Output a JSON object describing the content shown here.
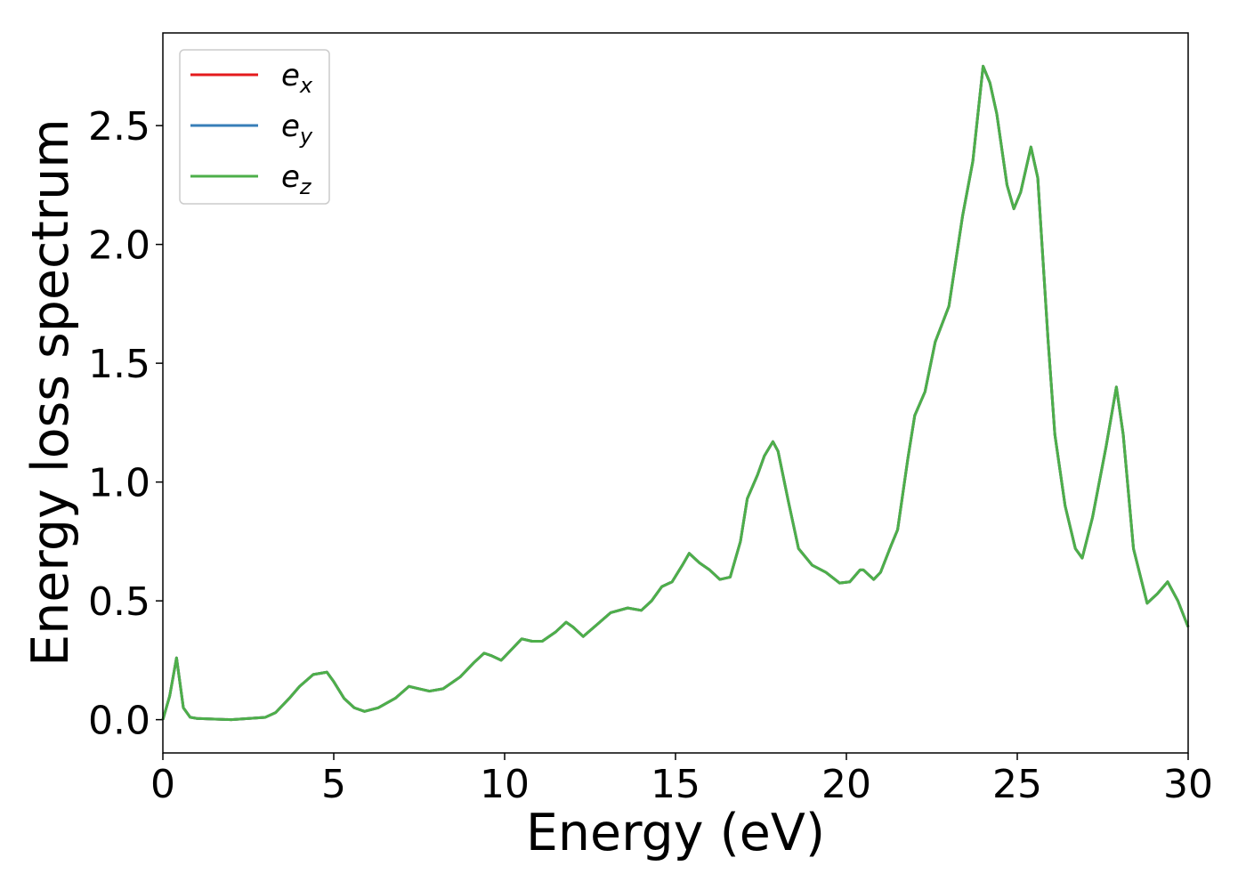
{
  "chart_data": {
    "type": "line",
    "xlabel": "Energy (eV)",
    "ylabel": "Energy loss spectrum",
    "x": [
      0,
      0.2,
      0.4,
      0.6,
      0.8,
      1,
      2,
      3,
      3.3,
      3.7,
      4,
      4.4,
      4.8,
      5,
      5.3,
      5.6,
      5.9,
      6.3,
      6.8,
      7.2,
      7.5,
      7.8,
      8.2,
      8.7,
      9.1,
      9.4,
      9.6,
      9.9,
      10.1,
      10.5,
      10.8,
      11.1,
      11.5,
      11.8,
      12,
      12.3,
      12.7,
      13.1,
      13.6,
      14,
      14.3,
      14.6,
      14.9,
      15.2,
      15.4,
      15.7,
      16,
      16.3,
      16.6,
      16.9,
      17.1,
      17.4,
      17.6,
      17.85,
      18,
      18.3,
      18.6,
      19,
      19.4,
      19.8,
      20.1,
      20.4,
      20.5,
      20.8,
      21,
      21.3,
      21.5,
      21.8,
      22,
      22.3,
      22.6,
      23,
      23.4,
      23.7,
      24,
      24.2,
      24.4,
      24.7,
      24.9,
      25.1,
      25.4,
      25.6,
      25.9,
      26.1,
      26.4,
      26.7,
      26.9,
      27.2,
      27.6,
      27.9,
      28.1,
      28.4,
      28.8,
      29.1,
      29.4,
      29.7,
      30
    ],
    "series": [
      {
        "name": "e_x",
        "color": "#e41a1c",
        "values": [
          0,
          0.1,
          0.26,
          0.05,
          0.01,
          0.005,
          0,
          0.01,
          0.03,
          0.09,
          0.14,
          0.19,
          0.2,
          0.16,
          0.09,
          0.05,
          0.035,
          0.05,
          0.09,
          0.14,
          0.13,
          0.12,
          0.13,
          0.18,
          0.24,
          0.28,
          0.27,
          0.25,
          0.28,
          0.34,
          0.33,
          0.33,
          0.37,
          0.41,
          0.39,
          0.35,
          0.4,
          0.45,
          0.47,
          0.46,
          0.5,
          0.56,
          0.58,
          0.65,
          0.7,
          0.66,
          0.63,
          0.59,
          0.6,
          0.75,
          0.93,
          1.03,
          1.11,
          1.17,
          1.13,
          0.92,
          0.72,
          0.65,
          0.62,
          0.575,
          0.58,
          0.63,
          0.63,
          0.59,
          0.62,
          0.73,
          0.8,
          1.1,
          1.28,
          1.38,
          1.59,
          1.74,
          2.12,
          2.35,
          2.75,
          2.68,
          2.55,
          2.25,
          2.15,
          2.22,
          2.41,
          2.28,
          1.6,
          1.2,
          0.9,
          0.72,
          0.68,
          0.85,
          1.15,
          1.4,
          1.2,
          0.72,
          0.49,
          0.53,
          0.58,
          0.5,
          0.39
        ]
      },
      {
        "name": "e_y",
        "color": "#377eb8",
        "values": [
          0,
          0.1,
          0.26,
          0.05,
          0.01,
          0.005,
          0,
          0.01,
          0.03,
          0.09,
          0.14,
          0.19,
          0.2,
          0.16,
          0.09,
          0.05,
          0.035,
          0.05,
          0.09,
          0.14,
          0.13,
          0.12,
          0.13,
          0.18,
          0.24,
          0.28,
          0.27,
          0.25,
          0.28,
          0.34,
          0.33,
          0.33,
          0.37,
          0.41,
          0.39,
          0.35,
          0.4,
          0.45,
          0.47,
          0.46,
          0.5,
          0.56,
          0.58,
          0.65,
          0.7,
          0.66,
          0.63,
          0.59,
          0.6,
          0.75,
          0.93,
          1.03,
          1.11,
          1.17,
          1.13,
          0.92,
          0.72,
          0.65,
          0.62,
          0.575,
          0.58,
          0.63,
          0.63,
          0.59,
          0.62,
          0.73,
          0.8,
          1.1,
          1.28,
          1.38,
          1.59,
          1.74,
          2.12,
          2.35,
          2.75,
          2.68,
          2.55,
          2.25,
          2.15,
          2.22,
          2.41,
          2.28,
          1.6,
          1.2,
          0.9,
          0.72,
          0.68,
          0.85,
          1.15,
          1.4,
          1.2,
          0.72,
          0.49,
          0.53,
          0.58,
          0.5,
          0.39
        ]
      },
      {
        "name": "e_z",
        "color": "#4daf4a",
        "values": [
          0,
          0.1,
          0.26,
          0.05,
          0.01,
          0.005,
          0,
          0.01,
          0.03,
          0.09,
          0.14,
          0.19,
          0.2,
          0.16,
          0.09,
          0.05,
          0.035,
          0.05,
          0.09,
          0.14,
          0.13,
          0.12,
          0.13,
          0.18,
          0.24,
          0.28,
          0.27,
          0.25,
          0.28,
          0.34,
          0.33,
          0.33,
          0.37,
          0.41,
          0.39,
          0.35,
          0.4,
          0.45,
          0.47,
          0.46,
          0.5,
          0.56,
          0.58,
          0.65,
          0.7,
          0.66,
          0.63,
          0.59,
          0.6,
          0.75,
          0.93,
          1.03,
          1.11,
          1.17,
          1.13,
          0.92,
          0.72,
          0.65,
          0.62,
          0.575,
          0.58,
          0.63,
          0.63,
          0.59,
          0.62,
          0.73,
          0.8,
          1.1,
          1.28,
          1.38,
          1.59,
          1.74,
          2.12,
          2.35,
          2.75,
          2.68,
          2.55,
          2.25,
          2.15,
          2.22,
          2.41,
          2.28,
          1.6,
          1.2,
          0.9,
          0.72,
          0.68,
          0.85,
          1.15,
          1.4,
          1.2,
          0.72,
          0.49,
          0.53,
          0.58,
          0.5,
          0.39
        ]
      }
    ],
    "xlim": [
      0,
      30
    ],
    "xticks": [
      0,
      5,
      10,
      15,
      20,
      25,
      30
    ],
    "ylim": [
      -0.14,
      2.89
    ],
    "yticks": [
      {
        "value": 0,
        "label": "0.0"
      },
      0.5,
      {
        "value": 1,
        "label": "1.0"
      },
      1.5,
      {
        "value": 2,
        "label": "2.0"
      },
      2.5
    ],
    "grid": false,
    "legend": "upper left"
  }
}
